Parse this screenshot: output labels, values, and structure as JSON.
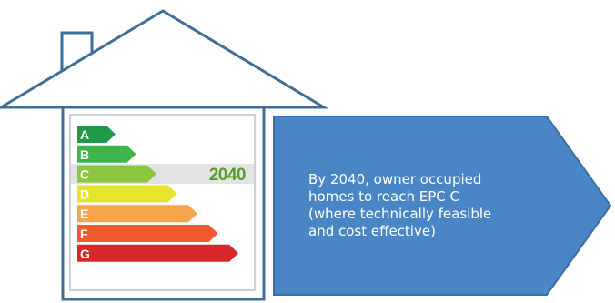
{
  "rating": {
    "bands": [
      {
        "letter": "A",
        "color": "#1e9a4a"
      },
      {
        "letter": "B",
        "color": "#3db54a"
      },
      {
        "letter": "C",
        "color": "#8cc63f"
      },
      {
        "letter": "D",
        "color": "#e5e52b"
      },
      {
        "letter": "E",
        "color": "#f7a54b"
      },
      {
        "letter": "F",
        "color": "#f15a2b"
      },
      {
        "letter": "G",
        "color": "#d9262a"
      }
    ],
    "target_band": "C",
    "target_label": "2040",
    "target_label_color": "#5a9e2a"
  },
  "callout": {
    "lines": [
      "By 2040, owner occupied",
      "homes to reach EPC C",
      "(where technically feasible",
      "and cost effective)"
    ],
    "fill": "#4a86c5",
    "stroke": "#3a6fa5"
  },
  "house": {
    "stroke": "#3f6f98"
  }
}
